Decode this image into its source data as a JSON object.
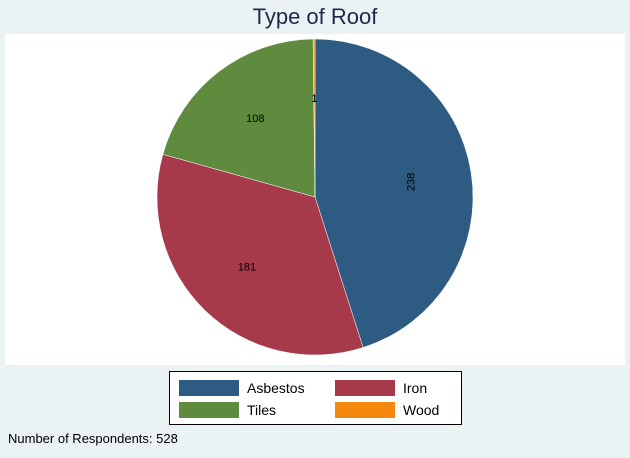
{
  "chart_data": {
    "type": "pie",
    "title": "Type of Roof",
    "categories": [
      "Asbestos",
      "Iron",
      "Tiles",
      "Wood"
    ],
    "values": [
      238,
      181,
      108,
      1
    ],
    "colors": [
      "#2d5b82",
      "#a63a4a",
      "#5e8b3e",
      "#f5890f"
    ],
    "slice_labels": [
      "238",
      "181",
      "108",
      "1"
    ],
    "start_angle_deg": 90,
    "direction": "clockwise",
    "legend_position": "bottom",
    "note": "Number of Respondents: 528"
  }
}
